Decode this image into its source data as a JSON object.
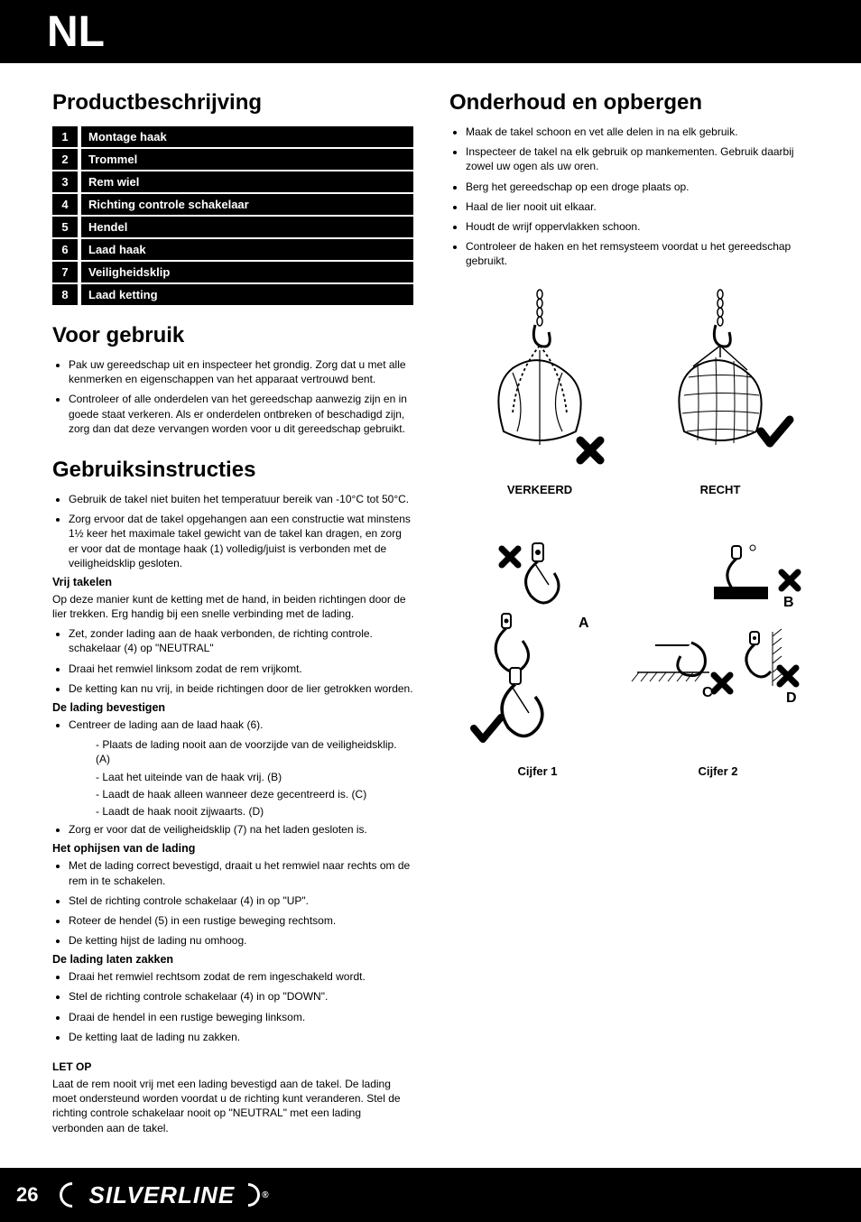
{
  "lang_code": "NL",
  "page_number": "26",
  "brand_name": "SILVERLINE",
  "left": {
    "section1_title": "Productbeschrijving",
    "parts": [
      {
        "n": "1",
        "label": "Montage haak"
      },
      {
        "n": "2",
        "label": "Trommel"
      },
      {
        "n": "3",
        "label": "Rem wiel"
      },
      {
        "n": "4",
        "label": "Richting controle schakelaar"
      },
      {
        "n": "5",
        "label": "Hendel"
      },
      {
        "n": "6",
        "label": "Laad haak"
      },
      {
        "n": "7",
        "label": "Veiligheidsklip"
      },
      {
        "n": "8",
        "label": "Laad ketting"
      }
    ],
    "section2_title": "Voor gebruik",
    "voor_gebruik": [
      "Pak uw gereedschap uit en inspecteer het grondig. Zorg dat u met alle kenmerken en eigenschappen van het apparaat vertrouwd bent.",
      "Controleer of alle onderdelen van het gereedschap aanwezig zijn en in goede staat verkeren. Als er onderdelen ontbreken of beschadigd zijn, zorg dan dat deze vervangen worden voor u dit gereedschap gebruikt."
    ],
    "section3_title": "Gebruiksinstructies",
    "gebruik_intro": [
      "Gebruik de takel niet buiten het temperatuur bereik van -10°C tot 50°C.",
      "Zorg ervoor dat de takel opgehangen aan een constructie wat minstens 1½ keer het maximale takel gewicht van de takel kan dragen, en zorg er voor dat de montage haak (1) volledig/juist is verbonden met de veiligheidsklip gesloten."
    ],
    "sub_vrij_title": "Vrij takelen",
    "sub_vrij_text": "Op deze manier kunt de ketting met de hand, in beiden richtingen door de lier trekken. Erg handig bij een snelle verbinding met de lading.",
    "sub_vrij_list": [
      "Zet, zonder lading aan de haak verbonden, de richting controle. schakelaar (4) op \"NEUTRAL\"",
      "Draai het remwiel linksom zodat de rem vrijkomt.",
      "De ketting kan nu vrij, in beide richtingen door de lier getrokken worden."
    ],
    "sub_bevest_title": "De lading bevestigen",
    "sub_bevest_first": "Centreer de lading aan de laad haak (6).",
    "sub_bevest_sublist": [
      "Plaats de lading nooit aan de voorzijde van de veiligheidsklip. (A)",
      "Laat het uiteinde van de haak vrij. (B)",
      "Laadt de haak alleen wanneer deze gecentreerd is.  (C)",
      "Laadt de haak nooit zijwaarts. (D)"
    ],
    "sub_bevest_last": "Zorg er voor dat de veiligheidsklip (7) na het laden gesloten is.",
    "sub_ophijsen_title": "Het ophijsen van de lading",
    "sub_ophijsen": [
      "Met de lading correct bevestigd, draait u het remwiel naar rechts om de rem in te schakelen.",
      "Stel de richting controle schakelaar (4) in op \"UP\".",
      "Roteer de hendel (5) in een rustige beweging rechtsom.",
      "De ketting hijst de lading nu omhoog."
    ],
    "sub_zakken_title": "De lading laten zakken",
    "sub_zakken": [
      "Draai het remwiel rechtsom zodat de rem ingeschakeld wordt.",
      "Stel de richting controle schakelaar (4) in op \"DOWN\".",
      "Draai de hendel in een rustige beweging linksom.",
      "De ketting laat de lading nu zakken."
    ],
    "letop_title": "LET OP",
    "letop_text": "Laat de rem nooit vrij met een lading bevestigd aan de takel. De lading moet ondersteund worden voordat u de richting kunt veranderen. Stel de richting controle schakelaar nooit op \"NEUTRAL\" met een lading verbonden aan de takel."
  },
  "right": {
    "section_title": "Onderhoud en opbergen",
    "list": [
      "Maak de takel schoon en vet alle delen in na elk gebruik.",
      "Inspecteer de takel na elk gebruik op mankementen. Gebruik daarbij zowel uw ogen als uw oren.",
      "Berg het gereedschap op een droge plaats op.",
      "Haal de lier nooit uit elkaar.",
      "Houdt de wrijf oppervlakken schoon.",
      "Controleer de haken en het remsysteem voordat u het gereedschap gebruikt."
    ],
    "caption_wrong": "VERKEERD",
    "caption_right": "RECHT",
    "caption_fig1": "Cijfer 1",
    "caption_fig2": "Cijfer 2",
    "labels": {
      "a": "A",
      "b": "B",
      "c": "C",
      "d": "D"
    }
  },
  "colors": {
    "black": "#000000",
    "white": "#ffffff"
  }
}
